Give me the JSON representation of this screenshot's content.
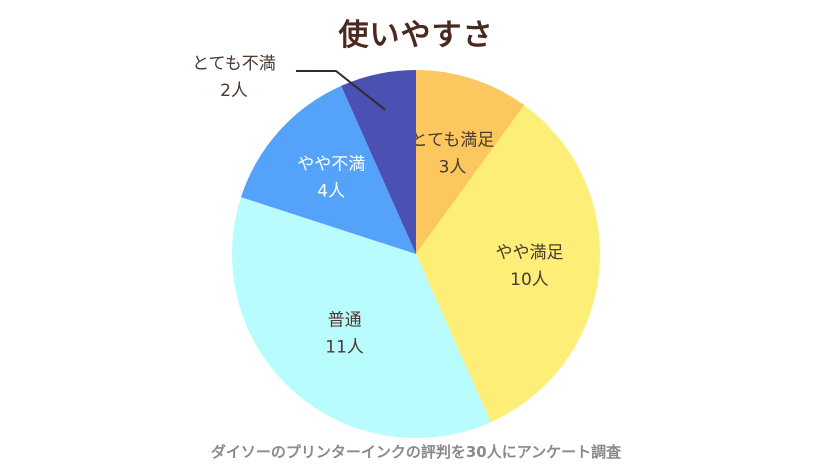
{
  "chart_data": {
    "type": "pie",
    "title": "使いやすさ",
    "footnote": "ダイソーのプリンターインクの評判を30人にアンケート調査",
    "unit": "人",
    "slices": [
      {
        "label": "とても満足",
        "value": 3,
        "value_text": "3人",
        "color": "#fdc75f",
        "text_color": "#4a3a30"
      },
      {
        "label": "やや満足",
        "value": 10,
        "value_text": "10人",
        "color": "#fdee78",
        "text_color": "#4a3a30"
      },
      {
        "label": "普通",
        "value": 11,
        "value_text": "11人",
        "color": "#b8fcfd",
        "text_color": "#4a3a30"
      },
      {
        "label": "やや不満",
        "value": 4,
        "value_text": "4人",
        "color": "#55a2fb",
        "text_color": "#ffffff"
      },
      {
        "label": "とても不満",
        "value": 2,
        "value_text": "2人",
        "color": "#4a51b2",
        "text_color": "#4a3a30"
      }
    ]
  }
}
